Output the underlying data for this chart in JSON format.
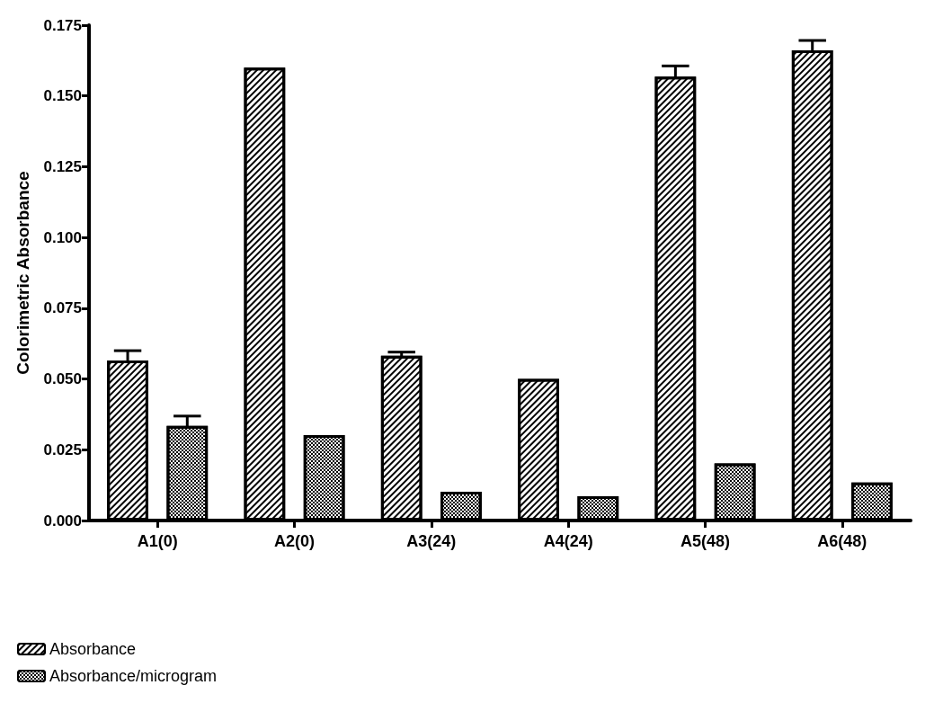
{
  "chart_data": {
    "type": "bar",
    "ylabel": "Colorimetric Absorbance",
    "categories": [
      "A1(0)",
      "A2(0)",
      "A3(24)",
      "A4(24)",
      "A5(48)",
      "A6(48)"
    ],
    "series": [
      {
        "name": "Absorbance",
        "color": "#ffffff",
        "values": [
          0.0565,
          0.16,
          0.0582,
          0.05,
          0.1568,
          0.1661
        ],
        "errors": [
          0.0035,
          null,
          0.0013,
          null,
          0.0038,
          0.0035
        ]
      },
      {
        "name": "Absorbance/microgram",
        "color": "#ffffff",
        "values": [
          0.0334,
          0.0302,
          0.0102,
          0.0086,
          0.0202,
          0.0134
        ],
        "errors": [
          0.0035,
          null,
          null,
          null,
          null,
          null
        ]
      }
    ],
    "ylim": [
      0,
      0.175
    ],
    "yticks": [
      {
        "value": 0,
        "label": "0.000"
      },
      {
        "value": 0.025,
        "label": "0.025"
      },
      {
        "value": 0.05,
        "label": "0.050"
      },
      {
        "value": 0.075,
        "label": "0.075"
      },
      {
        "value": 0.1,
        "label": "0.100"
      },
      {
        "value": 0.125,
        "label": "0.125"
      },
      {
        "value": 0.15,
        "label": "0.150"
      },
      {
        "value": 0.175,
        "label": "0.175"
      }
    ],
    "grid": false,
    "legend": "bottom left"
  }
}
